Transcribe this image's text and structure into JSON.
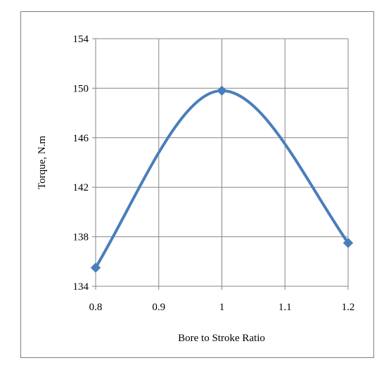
{
  "chart_data": {
    "type": "line",
    "title": "",
    "xlabel": "Bore to Stroke Ratio",
    "ylabel": "Torque, N.m",
    "x": [
      0.8,
      1.0,
      1.2
    ],
    "series": [
      {
        "values": [
          135.5,
          149.8,
          137.5
        ]
      }
    ],
    "xlim": [
      0.8,
      1.2
    ],
    "ylim": [
      134,
      154
    ],
    "xticks": [
      "0.8",
      "0.9",
      "1",
      "1.1",
      "1.2"
    ],
    "yticks": [
      "134",
      "138",
      "142",
      "146",
      "150",
      "154"
    ],
    "grid": true,
    "smooth": true,
    "marker": "diamond",
    "line_color": "#4a7ebb",
    "marker_color": "#4a7ebb",
    "grid_color": "#868686",
    "legend": "none"
  }
}
